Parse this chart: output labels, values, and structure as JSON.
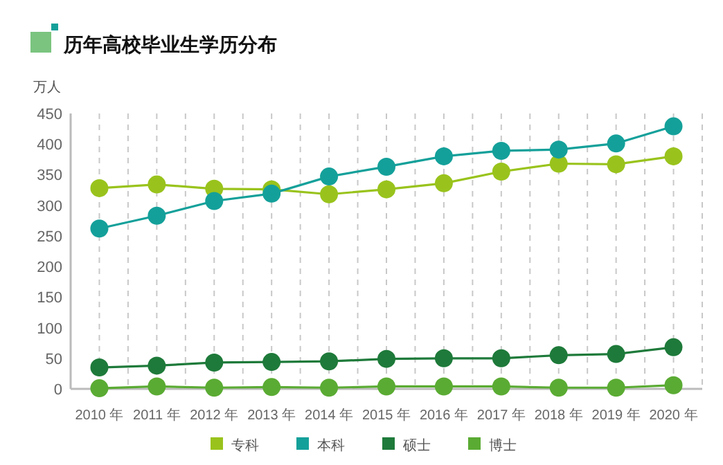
{
  "chart_data": {
    "type": "line",
    "title": "历年高校毕业生学历分布",
    "ylabel": "万人",
    "categories": [
      "2010 年",
      "2011 年",
      "2012 年",
      "2013 年",
      "2014 年",
      "2015 年",
      "2016 年",
      "2017 年",
      "2018 年",
      "2019 年",
      "2020 年"
    ],
    "series": [
      {
        "name": "专科",
        "color": "#99c31c",
        "values": [
          328,
          334,
          327,
          326,
          318,
          326,
          336,
          355,
          368,
          367,
          380
        ]
      },
      {
        "name": "本科",
        "color": "#14a09a",
        "values": [
          262,
          283,
          307,
          319,
          347,
          363,
          380,
          389,
          391,
          401,
          429
        ]
      },
      {
        "name": "硕士",
        "color": "#1e7a3a",
        "values": [
          35,
          38,
          43,
          44,
          45,
          49,
          50,
          50,
          55,
          57,
          68
        ]
      },
      {
        "name": "博士",
        "color": "#5aab33",
        "values": [
          1,
          4,
          2,
          3,
          2,
          4,
          4,
          4,
          2,
          2,
          6
        ]
      }
    ],
    "ylim": [
      0,
      450
    ],
    "yticks": [
      0,
      50,
      100,
      150,
      200,
      250,
      300,
      350,
      400,
      450
    ],
    "grid": "x",
    "legend": "bottom",
    "marker": "circle",
    "line_style": "solid"
  }
}
